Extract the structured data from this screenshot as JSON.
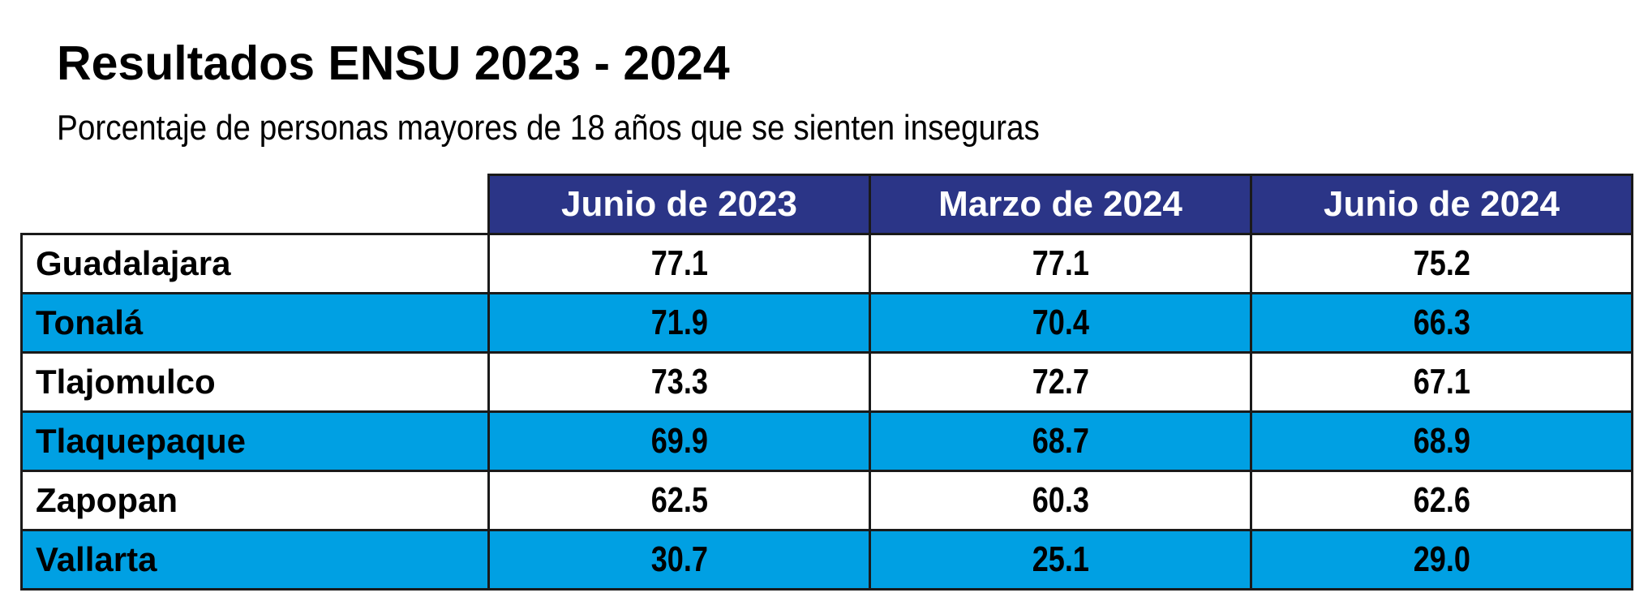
{
  "title": "Resultados ENSU 2023 - 2024",
  "subtitle": "Porcentaje de personas mayores de 18 años que se sienten inseguras",
  "colors": {
    "header_bg": "#2b3587",
    "header_text": "#ffffff",
    "alt_row_bg": "#00a0e3",
    "row_bg": "#ffffff",
    "border": "#1a1a1a"
  },
  "chart_data": {
    "type": "table",
    "title": "Resultados ENSU 2023 - 2024",
    "subtitle": "Porcentaje de personas mayores de 18 años que se sienten inseguras",
    "columns": [
      "Junio de 2023",
      "Marzo de 2024",
      "Junio de 2024"
    ],
    "rows": [
      {
        "name": "Guadalajara",
        "values": [
          "77.1",
          "77.1",
          "75.2"
        ]
      },
      {
        "name": "Tonalá",
        "values": [
          "71.9",
          "70.4",
          "66.3"
        ]
      },
      {
        "name": "Tlajomulco",
        "values": [
          "73.3",
          "72.7",
          "67.1"
        ]
      },
      {
        "name": "Tlaquepaque",
        "values": [
          "69.9",
          "68.7",
          "68.9"
        ]
      },
      {
        "name": "Zapopan",
        "values": [
          "62.5",
          "60.3",
          "62.6"
        ]
      },
      {
        "name": "Vallarta",
        "values": [
          "30.7",
          "25.1",
          "29.0"
        ]
      }
    ]
  }
}
